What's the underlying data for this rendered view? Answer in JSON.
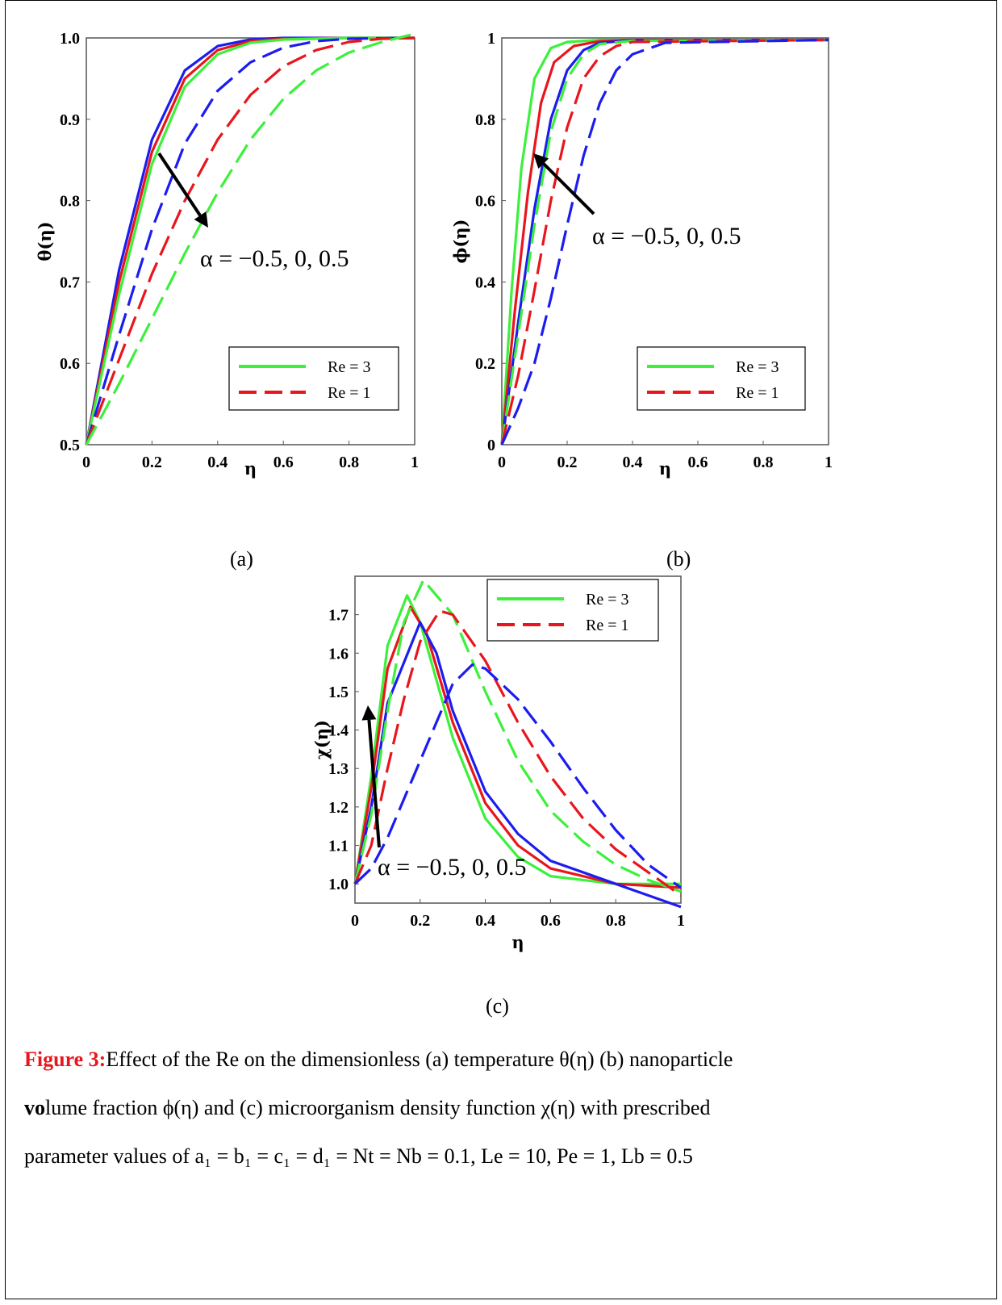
{
  "caption": {
    "label": "Figure 3:",
    "line1": "Effect of the Re on the dimensionless (a) temperature θ(η) (b) nanoparticle",
    "line2_bold": "vo",
    "line2_rest": "lume fraction ϕ(η) and (c) microorganism density function χ(η) with prescribed",
    "line3": "parameter values of a₁ = b₁ = c₁ = d₁ = Nt = Nb = 0.1, Le = 10, Pe = 1, Lb = 0.5"
  },
  "colors": {
    "green": "#3cf03c",
    "red": "#e8161c",
    "blue": "#1c1cf0",
    "caption_red": "#e8161c"
  },
  "chart_data": [
    {
      "id": "a",
      "type": "line",
      "panel_label": "(a)",
      "xlabel": "η",
      "ylabel": "θ(η)",
      "xlim": [
        0,
        1
      ],
      "ylim": [
        0.5,
        1.0
      ],
      "xticks": [
        "0",
        "0.2",
        "0.4",
        "0.6",
        "0.8",
        "1"
      ],
      "yticks": [
        "0.5",
        "0.6",
        "0.7",
        "0.8",
        "0.9",
        "1.0"
      ],
      "annotation": "α = −0.5, 0, 0.5",
      "legend": [
        {
          "label": "Re = 3",
          "style": "solid",
          "color": "green"
        },
        {
          "label": "Re = 1",
          "style": "dashed",
          "color": "red"
        }
      ],
      "legend_position": "bottom-right",
      "series": [
        {
          "color": "blue",
          "style": "solid",
          "x": [
            0,
            0.1,
            0.2,
            0.3,
            0.4,
            0.5,
            0.6,
            0.8,
            1.0
          ],
          "y": [
            0.5,
            0.715,
            0.875,
            0.96,
            0.99,
            0.998,
            1.0,
            1.0,
            1.0
          ]
        },
        {
          "color": "red",
          "style": "solid",
          "x": [
            0,
            0.1,
            0.2,
            0.3,
            0.4,
            0.5,
            0.6,
            0.8,
            1.0
          ],
          "y": [
            0.5,
            0.7,
            0.86,
            0.95,
            0.985,
            0.996,
            0.999,
            1.0,
            1.0
          ]
        },
        {
          "color": "green",
          "style": "solid",
          "x": [
            0,
            0.1,
            0.2,
            0.3,
            0.4,
            0.5,
            0.6,
            0.8,
            1.0
          ],
          "y": [
            0.5,
            0.685,
            0.845,
            0.94,
            0.98,
            0.994,
            0.998,
            1.0,
            1.0
          ]
        },
        {
          "color": "blue",
          "style": "dashed",
          "x": [
            0,
            0.1,
            0.2,
            0.3,
            0.4,
            0.5,
            0.6,
            0.7,
            0.8,
            1.0
          ],
          "y": [
            0.5,
            0.635,
            0.765,
            0.87,
            0.935,
            0.97,
            0.988,
            0.996,
            0.999,
            1.0
          ]
        },
        {
          "color": "red",
          "style": "dashed",
          "x": [
            0,
            0.1,
            0.2,
            0.3,
            0.4,
            0.5,
            0.6,
            0.7,
            0.8,
            0.9,
            1.0
          ],
          "y": [
            0.5,
            0.605,
            0.71,
            0.8,
            0.875,
            0.93,
            0.965,
            0.985,
            0.995,
            0.999,
            1.0
          ]
        },
        {
          "color": "green",
          "style": "dashed",
          "x": [
            0,
            0.1,
            0.2,
            0.3,
            0.4,
            0.5,
            0.6,
            0.7,
            0.8,
            0.9,
            1.0
          ],
          "y": [
            0.5,
            0.575,
            0.655,
            0.735,
            0.81,
            0.875,
            0.925,
            0.96,
            0.982,
            0.995,
            1.005
          ]
        }
      ]
    },
    {
      "id": "b",
      "type": "line",
      "panel_label": "(b)",
      "xlabel": "η",
      "ylabel": "ϕ(η)",
      "xlim": [
        0,
        1
      ],
      "ylim": [
        0,
        1
      ],
      "xticks": [
        "0",
        "0.2",
        "0.4",
        "0.6",
        "0.8",
        "1"
      ],
      "yticks": [
        "0",
        "0.2",
        "0.4",
        "0.6",
        "0.8",
        "1"
      ],
      "annotation": "α = −0.5, 0, 0.5",
      "legend": [
        {
          "label": "Re = 3",
          "style": "solid",
          "color": "green"
        },
        {
          "label": "Re = 1",
          "style": "dashed",
          "color": "red"
        }
      ],
      "legend_position": "bottom-right",
      "series": [
        {
          "color": "green",
          "style": "solid",
          "x": [
            0,
            0.03,
            0.06,
            0.1,
            0.15,
            0.2,
            0.3,
            0.4,
            1.0
          ],
          "y": [
            0,
            0.38,
            0.68,
            0.9,
            0.975,
            0.99,
            0.995,
            0.995,
            0.995
          ]
        },
        {
          "color": "red",
          "style": "solid",
          "x": [
            0,
            0.04,
            0.08,
            0.12,
            0.16,
            0.22,
            0.3,
            0.4,
            1.0
          ],
          "y": [
            0,
            0.33,
            0.62,
            0.84,
            0.94,
            0.98,
            0.992,
            0.995,
            0.995
          ]
        },
        {
          "color": "blue",
          "style": "solid",
          "x": [
            0,
            0.05,
            0.1,
            0.15,
            0.2,
            0.25,
            0.3,
            0.4,
            1.0
          ],
          "y": [
            0,
            0.3,
            0.58,
            0.8,
            0.92,
            0.97,
            0.988,
            0.994,
            0.995
          ]
        },
        {
          "color": "green",
          "style": "dashed",
          "x": [
            0,
            0.05,
            0.1,
            0.15,
            0.2,
            0.25,
            0.3,
            0.4,
            1.0
          ],
          "y": [
            0,
            0.27,
            0.54,
            0.77,
            0.9,
            0.96,
            0.985,
            0.993,
            0.995
          ]
        },
        {
          "color": "red",
          "style": "dashed",
          "x": [
            0,
            0.05,
            0.1,
            0.15,
            0.2,
            0.25,
            0.3,
            0.35,
            0.4,
            1.0
          ],
          "y": [
            0,
            0.17,
            0.38,
            0.6,
            0.78,
            0.9,
            0.955,
            0.98,
            0.99,
            0.995
          ]
        },
        {
          "color": "blue",
          "style": "dashed",
          "x": [
            0,
            0.05,
            0.1,
            0.15,
            0.2,
            0.25,
            0.3,
            0.35,
            0.4,
            0.5,
            1.0
          ],
          "y": [
            0,
            0.09,
            0.2,
            0.36,
            0.54,
            0.71,
            0.84,
            0.92,
            0.96,
            0.988,
            0.995
          ]
        }
      ]
    },
    {
      "id": "c",
      "type": "line",
      "panel_label": "(c)",
      "xlabel": "η",
      "ylabel": "χ(η)",
      "xlim": [
        0,
        1
      ],
      "ylim": [
        0.95,
        1.8
      ],
      "xticks": [
        "0",
        "0.2",
        "0.4",
        "0.6",
        "0.8",
        "1"
      ],
      "yticks": [
        "1.0",
        "1.1",
        "1.2",
        "1.3",
        "1.4",
        "1.5",
        "1.6",
        "1.7"
      ],
      "annotation": "α = −0.5, 0, 0.5",
      "legend": [
        {
          "label": "Re = 3",
          "style": "solid",
          "color": "green"
        },
        {
          "label": "Re = 1",
          "style": "dashed",
          "color": "red"
        }
      ],
      "legend_position": "top-right",
      "series": [
        {
          "color": "green",
          "style": "solid",
          "x": [
            0,
            0.05,
            0.1,
            0.16,
            0.2,
            0.3,
            0.4,
            0.5,
            0.6,
            0.8,
            1.0
          ],
          "y": [
            1.0,
            1.28,
            1.62,
            1.75,
            1.68,
            1.38,
            1.17,
            1.07,
            1.02,
            1.0,
            1.0
          ]
        },
        {
          "color": "red",
          "style": "solid",
          "x": [
            0,
            0.05,
            0.1,
            0.17,
            0.22,
            0.3,
            0.4,
            0.5,
            0.6,
            0.8,
            1.0
          ],
          "y": [
            1.0,
            1.25,
            1.56,
            1.72,
            1.65,
            1.42,
            1.21,
            1.1,
            1.04,
            1.0,
            0.99
          ]
        },
        {
          "color": "blue",
          "style": "solid",
          "x": [
            0,
            0.05,
            0.1,
            0.2,
            0.25,
            0.3,
            0.4,
            0.5,
            0.6,
            0.8,
            1.0
          ],
          "y": [
            1.0,
            1.2,
            1.47,
            1.68,
            1.6,
            1.45,
            1.24,
            1.13,
            1.06,
            1.0,
            0.94
          ]
        },
        {
          "color": "green",
          "style": "dashed",
          "x": [
            0,
            0.05,
            0.1,
            0.15,
            0.21,
            0.3,
            0.4,
            0.5,
            0.6,
            0.7,
            0.8,
            0.9,
            1.0
          ],
          "y": [
            1.0,
            1.18,
            1.45,
            1.68,
            1.79,
            1.7,
            1.5,
            1.32,
            1.19,
            1.11,
            1.05,
            1.01,
            0.98
          ]
        },
        {
          "color": "red",
          "style": "dashed",
          "x": [
            0,
            0.05,
            0.1,
            0.15,
            0.2,
            0.26,
            0.3,
            0.4,
            0.5,
            0.6,
            0.7,
            0.8,
            0.9,
            1.0
          ],
          "y": [
            1.0,
            1.1,
            1.3,
            1.48,
            1.63,
            1.71,
            1.7,
            1.58,
            1.42,
            1.28,
            1.17,
            1.09,
            1.03,
            0.97
          ]
        },
        {
          "color": "blue",
          "style": "dashed",
          "x": [
            0,
            0.05,
            0.1,
            0.2,
            0.3,
            0.36,
            0.4,
            0.5,
            0.6,
            0.7,
            0.8,
            0.9,
            1.0
          ],
          "y": [
            1.0,
            1.04,
            1.12,
            1.32,
            1.52,
            1.57,
            1.56,
            1.48,
            1.37,
            1.25,
            1.14,
            1.05,
            0.99
          ]
        }
      ]
    }
  ]
}
